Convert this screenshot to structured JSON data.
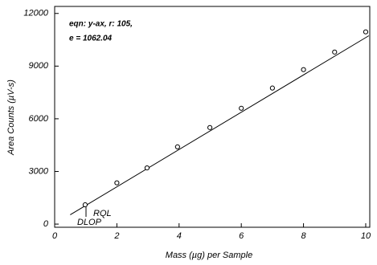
{
  "chart_data": {
    "type": "scatter",
    "annotations": [
      "eqn: y-ax, r: 105,",
      "e = 1062.04",
      "RQL",
      "DLOP"
    ],
    "xlabel": "Mass (µg) per Sample",
    "ylabel": "Area Counts (µV-s)",
    "x": [
      0.98,
      2.0,
      2.97,
      3.95,
      4.99,
      6.0,
      7.0,
      8.0,
      9.0,
      10.0
    ],
    "values": [
      1100,
      2350,
      3200,
      4400,
      5500,
      6600,
      7750,
      8800,
      9800,
      10950
    ],
    "fit_line": {
      "x": [
        0.5,
        10.1
      ],
      "values": [
        530,
        10730
      ]
    },
    "xlim": [
      0,
      10.13
    ],
    "ylim": [
      -180,
      12400
    ],
    "xticks": [
      0,
      2,
      4,
      6,
      8,
      10
    ],
    "yticks": [
      0,
      3000,
      6000,
      9000,
      12000
    ],
    "color": "#000000"
  }
}
